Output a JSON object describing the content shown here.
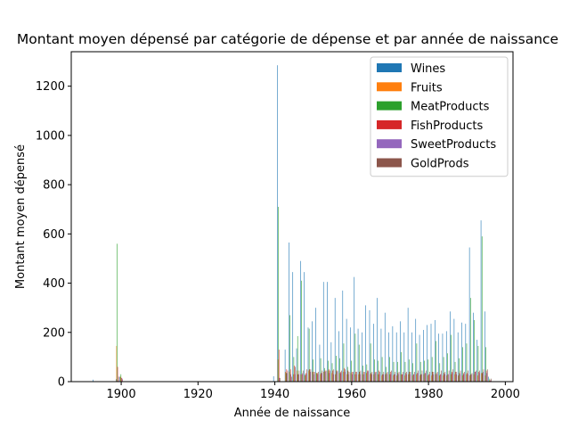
{
  "chart_data": {
    "type": "bar",
    "title": "Montant moyen dépensé par catégorie de dépense et par année de naissance",
    "xlabel": "Année de naissance",
    "ylabel": "Montant moyen dépensé",
    "xlim": [
      1887,
      2002
    ],
    "ylim": [
      0,
      1340
    ],
    "xticks": [
      1900,
      1920,
      1940,
      1960,
      1980,
      2000
    ],
    "yticks": [
      0,
      200,
      400,
      600,
      800,
      1000,
      1200
    ],
    "grid": false,
    "legend_position": "top-right",
    "x": [
      1893,
      1899,
      1900,
      1940,
      1941,
      1943,
      1944,
      1945,
      1946,
      1947,
      1948,
      1949,
      1950,
      1951,
      1952,
      1953,
      1954,
      1955,
      1956,
      1957,
      1958,
      1959,
      1960,
      1961,
      1962,
      1963,
      1964,
      1965,
      1966,
      1967,
      1968,
      1969,
      1970,
      1971,
      1972,
      1973,
      1974,
      1975,
      1976,
      1977,
      1978,
      1979,
      1980,
      1981,
      1982,
      1983,
      1984,
      1985,
      1986,
      1987,
      1988,
      1989,
      1990,
      1991,
      1992,
      1993,
      1994,
      1995,
      1996
    ],
    "series": [
      {
        "name": "Wines",
        "color": "#1f77b4",
        "values": [
          8,
          10,
          20,
          22,
          1285,
          130,
          565,
          445,
          135,
          490,
          445,
          220,
          245,
          300,
          150,
          405,
          405,
          160,
          340,
          205,
          370,
          255,
          220,
          425,
          215,
          200,
          310,
          290,
          235,
          340,
          215,
          280,
          200,
          225,
          200,
          245,
          200,
          300,
          200,
          255,
          190,
          210,
          230,
          235,
          250,
          195,
          195,
          205,
          285,
          255,
          200,
          240,
          235,
          545,
          280,
          170,
          655,
          285,
          20
        ]
      },
      {
        "name": "Fruits",
        "color": "#ff7f0e",
        "values": [
          0,
          145,
          20,
          2,
          90,
          40,
          40,
          30,
          45,
          30,
          25,
          45,
          40,
          35,
          30,
          40,
          45,
          35,
          30,
          35,
          40,
          30,
          35,
          30,
          30,
          30,
          35,
          30,
          30,
          30,
          25,
          30,
          30,
          25,
          25,
          30,
          25,
          30,
          25,
          30,
          25,
          30,
          25,
          25,
          30,
          25,
          25,
          25,
          30,
          30,
          25,
          25,
          30,
          25,
          30,
          25,
          35,
          25,
          5
        ]
      },
      {
        "name": "MeatProducts",
        "color": "#2ca02c",
        "values": [
          0,
          560,
          30,
          2,
          710,
          35,
          270,
          100,
          185,
          410,
          30,
          215,
          90,
          35,
          95,
          55,
          85,
          75,
          105,
          95,
          155,
          60,
          85,
          195,
          150,
          65,
          70,
          155,
          90,
          85,
          100,
          60,
          100,
          80,
          80,
          120,
          80,
          90,
          75,
          155,
          80,
          85,
          90,
          100,
          165,
          75,
          100,
          115,
          190,
          80,
          95,
          140,
          155,
          340,
          250,
          145,
          590,
          140,
          12
        ]
      },
      {
        "name": "FishProducts",
        "color": "#d62728",
        "values": [
          0,
          60,
          15,
          0,
          130,
          50,
          50,
          65,
          30,
          30,
          35,
          50,
          40,
          35,
          35,
          45,
          50,
          45,
          45,
          40,
          55,
          45,
          40,
          40,
          40,
          40,
          45,
          35,
          40,
          45,
          30,
          35,
          40,
          30,
          35,
          30,
          35,
          40,
          30,
          35,
          30,
          35,
          30,
          40,
          35,
          30,
          35,
          30,
          40,
          40,
          35,
          35,
          35,
          30,
          40,
          40,
          35,
          45,
          5
        ]
      },
      {
        "name": "SweetProducts",
        "color": "#9467bd",
        "values": [
          0,
          5,
          15,
          0,
          15,
          35,
          30,
          30,
          30,
          35,
          30,
          40,
          30,
          30,
          35,
          40,
          35,
          30,
          40,
          35,
          40,
          30,
          30,
          30,
          30,
          30,
          40,
          30,
          35,
          30,
          30,
          30,
          30,
          30,
          30,
          30,
          30,
          30,
          30,
          35,
          30,
          35,
          30,
          30,
          30,
          30,
          30,
          30,
          35,
          30,
          30,
          30,
          30,
          30,
          40,
          35,
          40,
          35,
          5
        ]
      },
      {
        "name": "GoldProds",
        "color": "#8c564b",
        "values": [
          0,
          20,
          10,
          0,
          15,
          45,
          20,
          60,
          45,
          45,
          50,
          50,
          40,
          40,
          45,
          45,
          45,
          50,
          45,
          45,
          50,
          40,
          40,
          40,
          45,
          40,
          45,
          40,
          40,
          40,
          40,
          40,
          45,
          40,
          40,
          40,
          40,
          40,
          40,
          45,
          45,
          45,
          40,
          40,
          40,
          45,
          40,
          45,
          50,
          40,
          45,
          40,
          45,
          35,
          45,
          45,
          50,
          50,
          12
        ]
      }
    ]
  }
}
